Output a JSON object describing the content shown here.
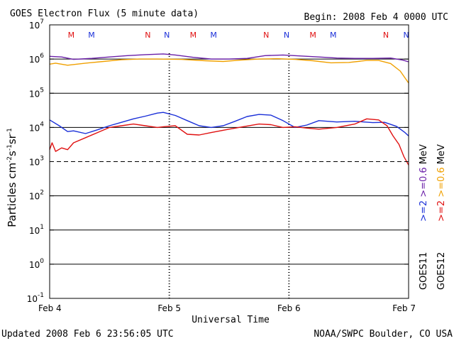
{
  "header": {
    "title": "GOES Electron Flux (5 minute data)",
    "begin": "Begin: 2008 Feb 4 0000 UTC"
  },
  "footer": {
    "updated": "Updated 2008 Feb  6 23:56:05 UTC",
    "source": "NOAA/SWPC Boulder, CO USA"
  },
  "colors": {
    "goes11_hi": "#6a1fa8",
    "goes12_hi": "#f0a000",
    "goes11_lo": "#1a2fd8",
    "goes12_lo": "#e01010",
    "m_marker": "#e01010",
    "n_marker": "#1a2fd8"
  },
  "chart_data": {
    "type": "line",
    "title": "GOES Electron Flux (5 minute data)",
    "xlabel": "Universal Time",
    "ylabel": "Particles cm-2s-1sr-1",
    "yscale": "log",
    "ylim_exp": [
      -1,
      7
    ],
    "xlim_days": [
      0,
      3
    ],
    "x_ticks": [
      "Feb 4",
      "Feb 5",
      "Feb 6",
      "Feb 7"
    ],
    "y_ticks": [
      {
        "base": "10",
        "exp": "7"
      },
      {
        "base": "10",
        "exp": "6"
      },
      {
        "base": "10",
        "exp": "5"
      },
      {
        "base": "10",
        "exp": "4"
      },
      {
        "base": "10",
        "exp": "3"
      },
      {
        "base": "10",
        "exp": "2"
      },
      {
        "base": "10",
        "exp": "1"
      },
      {
        "base": "10",
        "exp": "0"
      },
      {
        "base": "10",
        "exp": "-1"
      }
    ],
    "threshold_exp": 3,
    "grid": "solid at 10^6, 10^5, 10^4, 10^2, 10^1, 10^0; dashed at 10^3",
    "markers": [
      {
        "label": "M",
        "day": 0.18,
        "color": "m"
      },
      {
        "label": "M",
        "day": 0.35,
        "color": "n"
      },
      {
        "label": "N",
        "day": 0.82,
        "color": "m"
      },
      {
        "label": "N",
        "day": 0.98,
        "color": "n"
      },
      {
        "label": "M",
        "day": 1.2,
        "color": "m"
      },
      {
        "label": "M",
        "day": 1.37,
        "color": "n"
      },
      {
        "label": "N",
        "day": 1.81,
        "color": "m"
      },
      {
        "label": "N",
        "day": 1.98,
        "color": "n"
      },
      {
        "label": "M",
        "day": 2.2,
        "color": "m"
      },
      {
        "label": "M",
        "day": 2.37,
        "color": "n"
      },
      {
        "label": "N",
        "day": 2.81,
        "color": "m"
      },
      {
        "label": "N",
        "day": 2.98,
        "color": "n"
      }
    ],
    "legend": {
      "goes11_label": "GOES11",
      "goes12_label": "GOES12",
      "goes11_hi": ">=0.6",
      "goes11_lo": ">=2",
      "goes12_hi": ">=0.6",
      "goes12_lo": ">=2",
      "unit": "MeV"
    },
    "series": [
      {
        "name": "GOES11 >=0.6 MeV",
        "color": "goes11_hi",
        "points": [
          [
            0,
            6.08
          ],
          [
            0.1,
            6.06
          ],
          [
            0.2,
            5.99
          ],
          [
            0.35,
            6.02
          ],
          [
            0.5,
            6.06
          ],
          [
            0.65,
            6.1
          ],
          [
            0.8,
            6.13
          ],
          [
            0.95,
            6.15
          ],
          [
            1.05,
            6.12
          ],
          [
            1.2,
            6.05
          ],
          [
            1.35,
            6.0
          ],
          [
            1.5,
            6.0
          ],
          [
            1.65,
            6.02
          ],
          [
            1.8,
            6.1
          ],
          [
            1.95,
            6.12
          ],
          [
            2.1,
            6.09
          ],
          [
            2.25,
            6.06
          ],
          [
            2.4,
            6.03
          ],
          [
            2.55,
            6.02
          ],
          [
            2.7,
            6.02
          ],
          [
            2.85,
            6.03
          ],
          [
            2.95,
            5.97
          ],
          [
            3.0,
            5.92
          ]
        ]
      },
      {
        "name": "GOES12 >=0.6 MeV",
        "color": "goes12_hi",
        "points": [
          [
            0,
            5.85
          ],
          [
            0.05,
            5.88
          ],
          [
            0.15,
            5.82
          ],
          [
            0.3,
            5.88
          ],
          [
            0.45,
            5.93
          ],
          [
            0.6,
            5.98
          ],
          [
            0.75,
            6.0
          ],
          [
            0.9,
            6.0
          ],
          [
            1.1,
            5.99
          ],
          [
            1.3,
            5.95
          ],
          [
            1.45,
            5.93
          ],
          [
            1.6,
            5.97
          ],
          [
            1.75,
            6.0
          ],
          [
            1.9,
            6.01
          ],
          [
            2.05,
            5.99
          ],
          [
            2.2,
            5.95
          ],
          [
            2.35,
            5.89
          ],
          [
            2.5,
            5.9
          ],
          [
            2.65,
            5.96
          ],
          [
            2.75,
            5.96
          ],
          [
            2.85,
            5.87
          ],
          [
            2.93,
            5.65
          ],
          [
            2.97,
            5.45
          ],
          [
            3.0,
            5.3
          ]
        ]
      },
      {
        "name": "GOES11 >=2 MeV",
        "color": "goes11_lo",
        "points": [
          [
            0,
            4.22
          ],
          [
            0.08,
            4.05
          ],
          [
            0.15,
            3.88
          ],
          [
            0.2,
            3.9
          ],
          [
            0.3,
            3.82
          ],
          [
            0.4,
            3.93
          ],
          [
            0.5,
            4.05
          ],
          [
            0.6,
            4.15
          ],
          [
            0.7,
            4.25
          ],
          [
            0.8,
            4.33
          ],
          [
            0.9,
            4.42
          ],
          [
            0.95,
            4.44
          ],
          [
            1.05,
            4.35
          ],
          [
            1.15,
            4.2
          ],
          [
            1.25,
            4.05
          ],
          [
            1.35,
            4.0
          ],
          [
            1.45,
            4.05
          ],
          [
            1.55,
            4.18
          ],
          [
            1.65,
            4.32
          ],
          [
            1.75,
            4.38
          ],
          [
            1.85,
            4.36
          ],
          [
            1.95,
            4.2
          ],
          [
            2.05,
            4.0
          ],
          [
            2.15,
            4.07
          ],
          [
            2.25,
            4.2
          ],
          [
            2.4,
            4.16
          ],
          [
            2.55,
            4.18
          ],
          [
            2.7,
            4.14
          ],
          [
            2.8,
            4.15
          ],
          [
            2.9,
            4.03
          ],
          [
            2.97,
            3.85
          ],
          [
            3.0,
            3.75
          ]
        ]
      },
      {
        "name": "GOES12 >=2 MeV",
        "color": "goes12_lo",
        "points": [
          [
            0,
            3.35
          ],
          [
            0.02,
            3.55
          ],
          [
            0.05,
            3.3
          ],
          [
            0.1,
            3.4
          ],
          [
            0.15,
            3.35
          ],
          [
            0.2,
            3.55
          ],
          [
            0.3,
            3.7
          ],
          [
            0.4,
            3.85
          ],
          [
            0.5,
            4.0
          ],
          [
            0.6,
            4.05
          ],
          [
            0.7,
            4.1
          ],
          [
            0.8,
            4.05
          ],
          [
            0.9,
            4.0
          ],
          [
            0.95,
            4.02
          ],
          [
            1.05,
            4.05
          ],
          [
            1.15,
            3.8
          ],
          [
            1.25,
            3.78
          ],
          [
            1.35,
            3.85
          ],
          [
            1.5,
            3.95
          ],
          [
            1.65,
            4.04
          ],
          [
            1.75,
            4.1
          ],
          [
            1.85,
            4.08
          ],
          [
            1.95,
            4.0
          ],
          [
            2.05,
            4.02
          ],
          [
            2.15,
            3.98
          ],
          [
            2.25,
            3.95
          ],
          [
            2.4,
            4.0
          ],
          [
            2.55,
            4.1
          ],
          [
            2.65,
            4.25
          ],
          [
            2.75,
            4.22
          ],
          [
            2.82,
            4.05
          ],
          [
            2.87,
            3.75
          ],
          [
            2.92,
            3.5
          ],
          [
            2.96,
            3.15
          ],
          [
            3.0,
            2.9
          ]
        ]
      }
    ]
  }
}
